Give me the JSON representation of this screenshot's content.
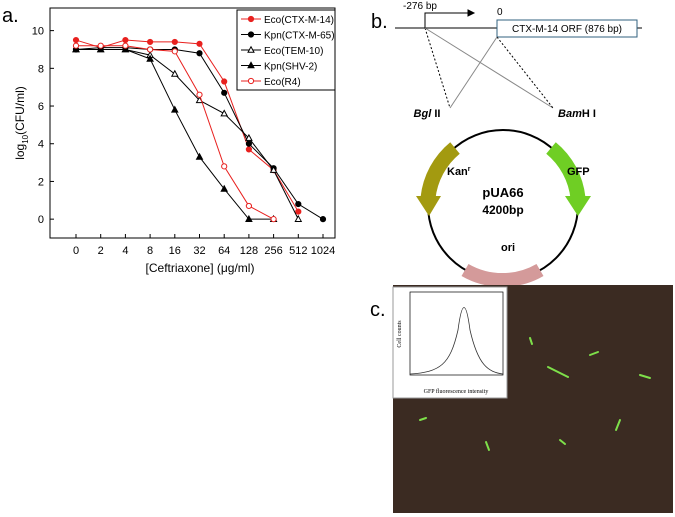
{
  "panels": {
    "a": "a.",
    "b": "b.",
    "c": "c."
  },
  "chart_data": {
    "type": "line",
    "y_label": {
      "main": "log",
      "sub": "10",
      "rest": "(CFU/ml)"
    },
    "x_label": "[Ceftriaxone]   (μg/ml)",
    "categories": [
      "0",
      "2",
      "4",
      "8",
      "16",
      "32",
      "64",
      "128",
      "256",
      "512",
      "1024"
    ],
    "ylim": [
      -1,
      11.2
    ],
    "yticks": [
      0,
      2,
      4,
      6,
      8,
      10
    ],
    "legend": "top-right",
    "series": [
      {
        "name": "Eco(CTX-M-14)",
        "color": "#e8211f",
        "marker": "circle",
        "filled": true,
        "values": [
          9.5,
          9.1,
          9.5,
          9.4,
          9.4,
          9.3,
          7.3,
          3.7,
          2.6,
          0.4,
          null
        ]
      },
      {
        "name": "Kpn(CTX-M-65)",
        "color": "#000000",
        "marker": "circle",
        "filled": true,
        "values": [
          9.0,
          9.1,
          9.1,
          9.0,
          9.0,
          8.8,
          6.7,
          4.0,
          2.7,
          0.8,
          0.0
        ]
      },
      {
        "name": "Eco(TEM-10)",
        "color": "#000000",
        "marker": "triangle",
        "filled": false,
        "values": [
          9.0,
          9.0,
          9.0,
          8.7,
          7.7,
          6.3,
          5.6,
          4.3,
          2.6,
          0.0,
          null
        ]
      },
      {
        "name": "Kpn(SHV-2)",
        "color": "#000000",
        "marker": "triangle",
        "filled": true,
        "values": [
          9.0,
          9.0,
          9.0,
          8.5,
          5.8,
          3.3,
          1.6,
          0.0,
          0.0,
          null,
          null
        ]
      },
      {
        "name": "Eco(R4)",
        "color": "#e8211f",
        "marker": "circle",
        "filled": false,
        "values": [
          9.2,
          9.2,
          9.2,
          9.0,
          8.9,
          6.6,
          2.8,
          0.7,
          0.0,
          null,
          null
        ]
      }
    ]
  },
  "construct": {
    "start": "-276 bp",
    "zero": "0",
    "orf": "CTX-M-14 ORF (876 bp)"
  },
  "plasmid": {
    "site1": {
      "italic": "Bgl",
      "rest": " II"
    },
    "site2": {
      "italic": "Bam",
      "rest": "H I"
    },
    "kan": {
      "main": "Kan",
      "sup": "r"
    },
    "gfp": "GFP",
    "name": "pUA66",
    "size": "4200bp",
    "ori": "ori"
  },
  "micrograph": {
    "inset_y_label": "Cell counts",
    "inset_x_label": "GFP fluorescence intensity"
  }
}
